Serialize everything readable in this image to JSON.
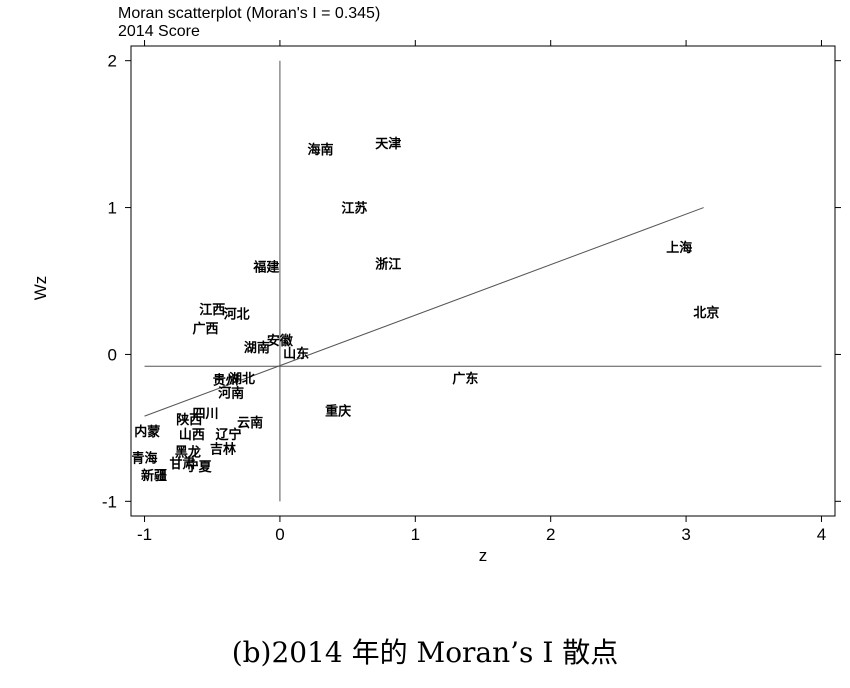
{
  "chart_data": {
    "type": "scatter",
    "title": "Moran scatterplot (Moran's I = 0.345)",
    "subtitle": "2014 Score",
    "xlabel": "z",
    "ylabel": "Wz",
    "xlim": [
      -1.1,
      4.1
    ],
    "ylim": [
      -1.1,
      2.1
    ],
    "xticks": [
      "-1",
      "0",
      "1",
      "2",
      "3",
      "4"
    ],
    "yticks": [
      "-1",
      "0",
      "1",
      "2"
    ],
    "points": [
      {
        "label": "海南",
        "x": 0.3,
        "y": 1.4
      },
      {
        "label": "天津",
        "x": 0.8,
        "y": 1.44
      },
      {
        "label": "江苏",
        "x": 0.55,
        "y": 1.0
      },
      {
        "label": "福建",
        "x": -0.1,
        "y": 0.6
      },
      {
        "label": "浙江",
        "x": 0.8,
        "y": 0.62
      },
      {
        "label": "上海",
        "x": 2.95,
        "y": 0.73
      },
      {
        "label": "北京",
        "x": 3.15,
        "y": 0.29
      },
      {
        "label": "江西",
        "x": -0.5,
        "y": 0.31
      },
      {
        "label": "河北",
        "x": -0.32,
        "y": 0.28
      },
      {
        "label": "广西",
        "x": -0.55,
        "y": 0.18
      },
      {
        "label": "安徽",
        "x": 0.0,
        "y": 0.1
      },
      {
        "label": "湖南",
        "x": -0.17,
        "y": 0.05
      },
      {
        "label": "山东",
        "x": 0.12,
        "y": 0.01
      },
      {
        "label": "广东",
        "x": 1.37,
        "y": -0.16
      },
      {
        "label": "贵州",
        "x": -0.4,
        "y": -0.17
      },
      {
        "label": "湖北",
        "x": -0.28,
        "y": -0.16
      },
      {
        "label": "河南",
        "x": -0.36,
        "y": -0.26
      },
      {
        "label": "重庆",
        "x": 0.43,
        "y": -0.38
      },
      {
        "label": "四川",
        "x": -0.55,
        "y": -0.4
      },
      {
        "label": "陕西",
        "x": -0.67,
        "y": -0.44
      },
      {
        "label": "云南",
        "x": -0.22,
        "y": -0.46
      },
      {
        "label": "内蒙",
        "x": -0.98,
        "y": -0.52
      },
      {
        "label": "山西",
        "x": -0.65,
        "y": -0.54
      },
      {
        "label": "辽宁",
        "x": -0.38,
        "y": -0.54
      },
      {
        "label": "黑龙",
        "x": -0.68,
        "y": -0.66
      },
      {
        "label": "吉林",
        "x": -0.42,
        "y": -0.64
      },
      {
        "label": "青海",
        "x": -1.0,
        "y": -0.7
      },
      {
        "label": "甘肃",
        "x": -0.72,
        "y": -0.74
      },
      {
        "label": "宁夏",
        "x": -0.6,
        "y": -0.76
      },
      {
        "label": "新疆",
        "x": -0.93,
        "y": -0.82
      }
    ],
    "fit_line": {
      "x": [
        -1.0,
        3.13
      ],
      "y": [
        -0.42,
        1.0
      ]
    },
    "ref_lines": {
      "x": 0,
      "y": -0.08
    },
    "grid": false
  },
  "caption": "(b)2014 年的 Moran’s I 散点"
}
